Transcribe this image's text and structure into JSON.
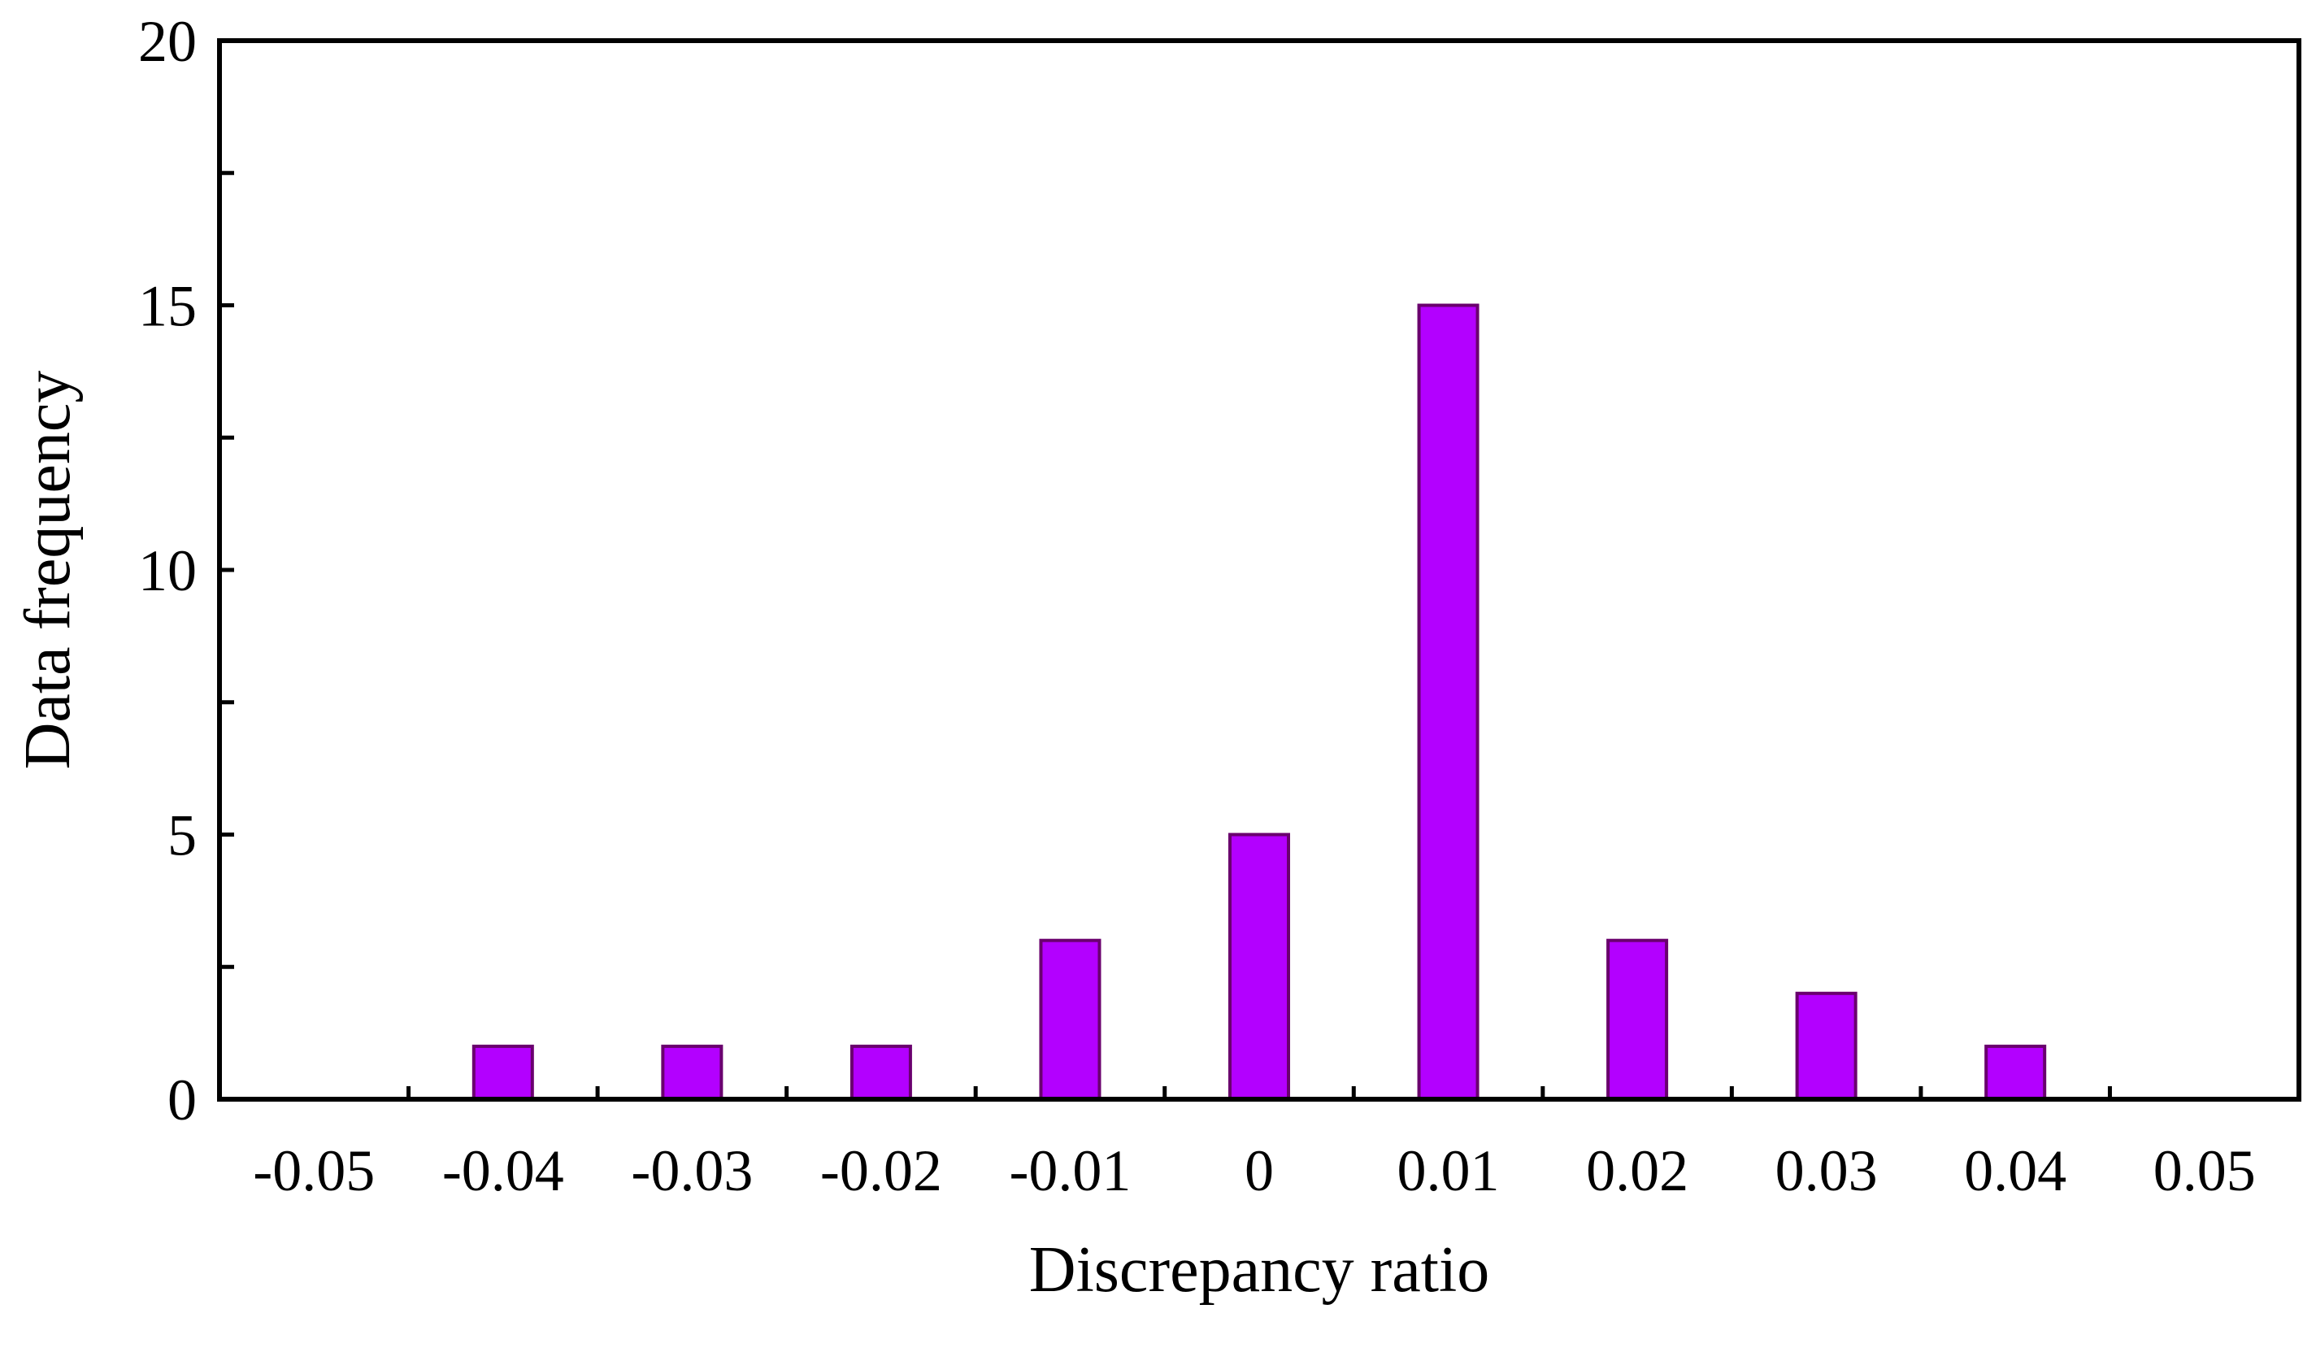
{
  "chart_data": {
    "type": "bar",
    "title": "",
    "xlabel": "Discrepancy ratio",
    "ylabel": "Data frequency",
    "categories": [
      "-0.05",
      "-0.04",
      "-0.03",
      "-0.02",
      "-0.01",
      "0",
      "0.01",
      "0.02",
      "0.03",
      "0.04",
      "0.05"
    ],
    "values": [
      0,
      1,
      1,
      1,
      3,
      5,
      15,
      3,
      2,
      1,
      0
    ],
    "ylim": [
      0,
      20
    ],
    "yticks": [
      "0",
      "5",
      "10",
      "15",
      "20"
    ],
    "y_minor_step": 2.5,
    "grid": false,
    "legend": "none",
    "colors": {
      "bar_fill": "#b300ff",
      "bar_stroke": "#6a006e",
      "axis": "#000000"
    }
  }
}
